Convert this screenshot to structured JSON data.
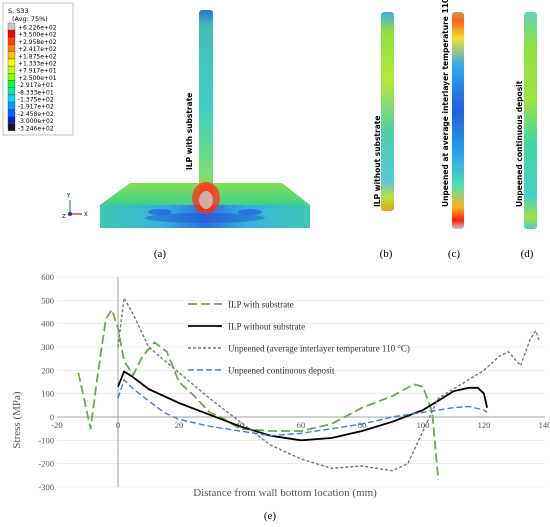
{
  "legend_contour": {
    "title": "S, S33",
    "subtitle": "(Avg: 75%)",
    "entries": [
      "+6.226e+02",
      "+3.500e+02",
      "+2.958e+02",
      "+2.417e+02",
      "+1.875e+02",
      "+1.333e+02",
      "+7.917e+01",
      "+2.500e+01",
      "-2.917e+01",
      "-8.333e+01",
      "-1.375e+02",
      "-1.917e+02",
      "-2.458e+02",
      "-3.000e+02",
      "-3.246e+02"
    ],
    "colors": [
      "#c8c8c8",
      "#ff0000",
      "#ff4000",
      "#ff8000",
      "#ffbf00",
      "#ffff00",
      "#bfff00",
      "#7fff00",
      "#00ff40",
      "#00e6a0",
      "#00d8ff",
      "#00a0ff",
      "#0060ff",
      "#0020d8",
      "#1a1a1a"
    ]
  },
  "triad": {
    "y": "Y",
    "z": "Z",
    "x": "X"
  },
  "panels": {
    "a": {
      "label": "(a)",
      "text": "ILP with substrate"
    },
    "b": {
      "label": "(b)",
      "text": "ILP without substrate"
    },
    "c": {
      "label": "(c)",
      "text": "Unpeened at average interlayer temperature 110C"
    },
    "d": {
      "label": "(d)",
      "text": "Unpeened continuous deposit"
    },
    "e": {
      "label": "(e)"
    }
  },
  "chart_data": {
    "type": "line",
    "title": "",
    "xlabel": "Distance from wall bottom location (mm)",
    "ylabel": "Stress (MPa)",
    "xlim": [
      -20,
      140
    ],
    "ylim": [
      -300,
      600
    ],
    "xticks": [
      -20,
      0,
      20,
      40,
      60,
      80,
      100,
      120,
      140
    ],
    "yticks": [
      -300,
      -200,
      -100,
      0,
      100,
      200,
      300,
      400,
      500,
      600
    ],
    "legend_position": "top-right",
    "series": [
      {
        "name": "ILP with substrate",
        "color": "#6aa84f",
        "dash": "long-dash",
        "points": [
          [
            -13,
            190
          ],
          [
            -9,
            -50
          ],
          [
            -7,
            150
          ],
          [
            -4,
            420
          ],
          [
            -2,
            460
          ],
          [
            0,
            380
          ],
          [
            2,
            240
          ],
          [
            5,
            180
          ],
          [
            8,
            260
          ],
          [
            12,
            320
          ],
          [
            16,
            280
          ],
          [
            20,
            150
          ],
          [
            25,
            90
          ],
          [
            30,
            20
          ],
          [
            35,
            -10
          ],
          [
            40,
            -50
          ],
          [
            50,
            -60
          ],
          [
            60,
            -60
          ],
          [
            70,
            -30
          ],
          [
            80,
            40
          ],
          [
            90,
            90
          ],
          [
            97,
            140
          ],
          [
            100,
            130
          ],
          [
            103,
            20
          ],
          [
            105,
            -270
          ]
        ]
      },
      {
        "name": "ILP without substrate",
        "color": "#000000",
        "dash": "solid",
        "points": [
          [
            0,
            130
          ],
          [
            2,
            195
          ],
          [
            5,
            170
          ],
          [
            10,
            120
          ],
          [
            15,
            90
          ],
          [
            20,
            60
          ],
          [
            30,
            10
          ],
          [
            40,
            -40
          ],
          [
            50,
            -80
          ],
          [
            60,
            -100
          ],
          [
            70,
            -90
          ],
          [
            80,
            -60
          ],
          [
            90,
            -20
          ],
          [
            100,
            30
          ],
          [
            105,
            70
          ],
          [
            110,
            110
          ],
          [
            115,
            125
          ],
          [
            118,
            125
          ],
          [
            120,
            100
          ],
          [
            121,
            40
          ]
        ]
      },
      {
        "name": "Unpeened (average interlayer temperature 110 °C)",
        "color": "#777777",
        "dash": "short-dash",
        "points": [
          [
            0,
            300
          ],
          [
            2,
            510
          ],
          [
            5,
            440
          ],
          [
            10,
            300
          ],
          [
            20,
            190
          ],
          [
            30,
            80
          ],
          [
            40,
            -20
          ],
          [
            50,
            -120
          ],
          [
            60,
            -180
          ],
          [
            70,
            -220
          ],
          [
            80,
            -210
          ],
          [
            90,
            -230
          ],
          [
            95,
            -200
          ],
          [
            100,
            -60
          ],
          [
            105,
            80
          ],
          [
            110,
            120
          ],
          [
            120,
            200
          ],
          [
            125,
            260
          ],
          [
            128,
            280
          ],
          [
            132,
            220
          ],
          [
            135,
            330
          ],
          [
            137,
            370
          ],
          [
            138,
            330
          ]
        ]
      },
      {
        "name": "Unpeened continuous deposit",
        "color": "#4a7ebb",
        "dash": "dash",
        "points": [
          [
            0,
            80
          ],
          [
            2,
            160
          ],
          [
            5,
            120
          ],
          [
            10,
            70
          ],
          [
            15,
            20
          ],
          [
            20,
            -10
          ],
          [
            30,
            -40
          ],
          [
            40,
            -60
          ],
          [
            50,
            -80
          ],
          [
            60,
            -70
          ],
          [
            70,
            -50
          ],
          [
            80,
            -30
          ],
          [
            90,
            0
          ],
          [
            100,
            20
          ],
          [
            110,
            40
          ],
          [
            115,
            45
          ],
          [
            120,
            30
          ],
          [
            121,
            20
          ]
        ]
      }
    ]
  }
}
